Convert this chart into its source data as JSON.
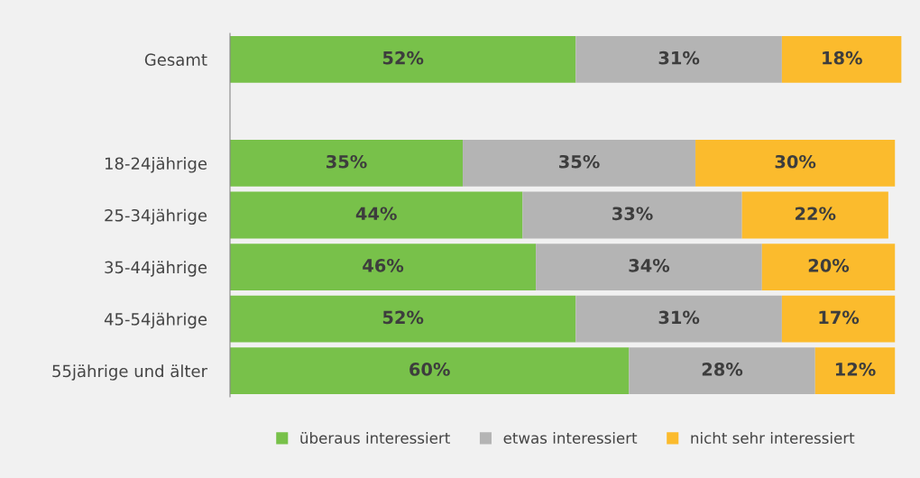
{
  "chart_data": {
    "type": "bar",
    "orientation": "horizontal",
    "stacked": true,
    "categories": [
      "Gesamt",
      null,
      "18-24jährige",
      "25-34jährige",
      "35-44jährige",
      "45-54jährige",
      "55jährige und älter"
    ],
    "xlim": [
      0,
      101
    ],
    "tick_labels": "y",
    "grid": false,
    "legend": "bottom",
    "series": [
      {
        "name": "überaus interessiert",
        "color": "#78c14a",
        "values": [
          52,
          null,
          35,
          44,
          46,
          52,
          60
        ],
        "value_labels": [
          "52%",
          null,
          "35%",
          "44%",
          "46%",
          "52%",
          "60%"
        ]
      },
      {
        "name": "etwas interessiert",
        "color": "#b4b4b4",
        "values": [
          31,
          null,
          35,
          33,
          34,
          31,
          28
        ],
        "value_labels": [
          "31%",
          null,
          "35%",
          "33%",
          "34%",
          "31%",
          "28%"
        ]
      },
      {
        "name": "nicht sehr interessiert",
        "color": "#fbbb2d",
        "values": [
          18,
          null,
          30,
          22,
          20,
          17,
          12
        ],
        "value_labels": [
          "18%",
          null,
          "30%",
          "22%",
          "20%",
          "17%",
          "12%"
        ]
      }
    ]
  }
}
